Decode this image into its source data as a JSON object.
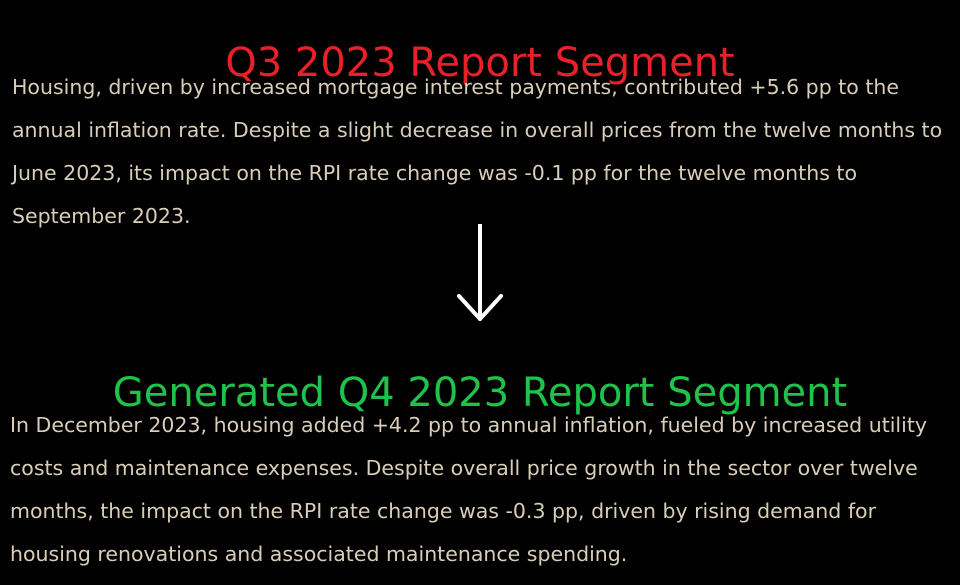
{
  "q3": {
    "title": "Q3 2023 Report Segment",
    "text": "Housing, driven by increased mortgage interest payments, contributed +5.6 pp to the annual inflation rate. Despite a slight decrease in overall prices from the twelve months to June 2023, its impact on the RPI rate change was -0.1 pp for the twelve months to September 2023.",
    "title_color": "#e8202a"
  },
  "arrow_icon": "down-arrow-icon",
  "q4": {
    "title": "Generated Q4 2023 Report Segment",
    "text": "In December 2023, housing added +4.2 pp to annual inflation, fueled by increased utility costs and maintenance expenses. Despite overall price growth in the sector over twelve months, the impact on the RPI rate change was -0.3 pp, driven by rising demand for housing renovations and associated maintenance spending.",
    "title_color": "#1fc24a"
  },
  "colors": {
    "background": "#000000",
    "body_text": "#d8cdb8"
  }
}
